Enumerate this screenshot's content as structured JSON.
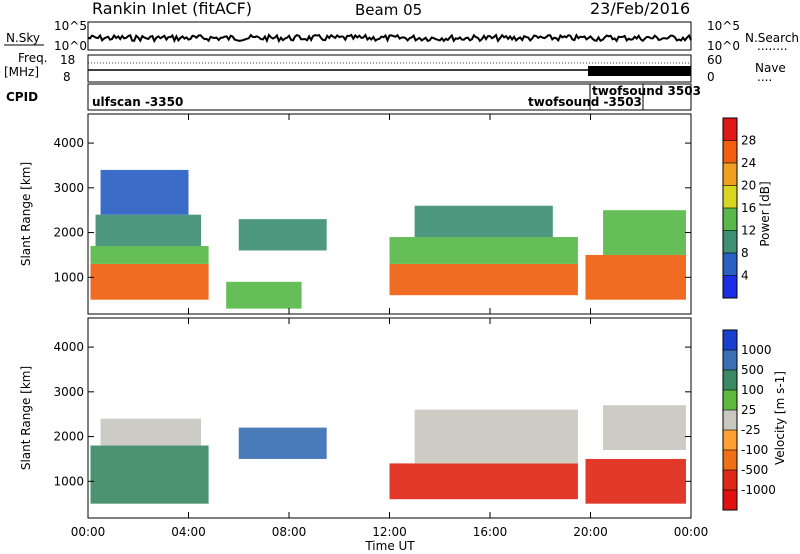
{
  "header": {
    "station": "Rankin Inlet (fitACF)",
    "beam": "Beam 05",
    "date": "23/Feb/2016"
  },
  "noise_panel": {
    "left_label": "N.Sky",
    "right_label": "N.Search",
    "right_dots": "........",
    "tick_top": "10^5",
    "tick_bottom": "10^0",
    "scale": "log"
  },
  "freq_panel": {
    "left_label_1": "Freq.",
    "left_label_2": "[MHz]",
    "ticks_left": [
      "18",
      "8"
    ],
    "right_label": "Nave",
    "right_dots": "....",
    "ticks_right": [
      "60",
      "0"
    ]
  },
  "cpid": {
    "label": "CPID",
    "segments": [
      {
        "name": "ulfscan -3350",
        "start_h": 0.0
      },
      {
        "name": "twofsound -3503",
        "start_h": 19.8
      },
      {
        "name": "twofsound 3503",
        "start_h": 20.0
      }
    ]
  },
  "power_panel": {
    "ylabel": "Slant Range [km]",
    "yticks": [
      "1000",
      "2000",
      "3000",
      "4000"
    ],
    "ylim": [
      180,
      4650
    ],
    "cbar_label": "Power [dB]",
    "cbar_ticks": [
      "4",
      "8",
      "12",
      "16",
      "20",
      "24",
      "28"
    ],
    "cbar_colors": [
      "#1a2ee8",
      "#2a5fc4",
      "#3f8f74",
      "#58b84a",
      "#d8d61e",
      "#f0a020",
      "#f06010",
      "#e01818"
    ]
  },
  "velocity_panel": {
    "ylabel": "Slant Range [km]",
    "yticks": [
      "1000",
      "2000",
      "3000",
      "4000"
    ],
    "ylim": [
      180,
      4650
    ],
    "cbar_label": "Velocity [m s-1]",
    "cbar_ticks": [
      "1000",
      "500",
      "100",
      "25",
      "-25",
      "-100",
      "-500",
      "-1000"
    ],
    "cbar_colors": [
      "#1a3fcf",
      "#3a6fb4",
      "#3c8a64",
      "#5fba40",
      "#c8c8c0",
      "#ffa030",
      "#f07018",
      "#e02818",
      "#e01010"
    ]
  },
  "xaxis": {
    "label": "Time UT",
    "ticks": [
      "00:00",
      "04:00",
      "08:00",
      "12:00",
      "16:00",
      "20:00",
      "00:00"
    ],
    "xlim_hours": [
      0,
      24
    ]
  },
  "chart_data": {
    "type": "heatmap",
    "title": "Rankin Inlet (fitACF)",
    "xlabel": "Time UT",
    "ylabel": "Slant Range [km]",
    "xlim_hours": [
      0,
      24
    ],
    "ylim_km": [
      180,
      4650
    ],
    "power_regions": [
      {
        "t0": 0.1,
        "t1": 4.8,
        "r0": 500,
        "r1": 1300,
        "value_db": 26
      },
      {
        "t0": 0.1,
        "t1": 4.8,
        "r0": 1300,
        "r1": 1700,
        "value_db": 14
      },
      {
        "t0": 0.3,
        "t1": 4.5,
        "r0": 1700,
        "r1": 2400,
        "value_db": 10
      },
      {
        "t0": 0.5,
        "t1": 4.0,
        "r0": 2400,
        "r1": 3400,
        "value_db": 6
      },
      {
        "t0": 5.5,
        "t1": 8.5,
        "r0": 300,
        "r1": 900,
        "value_db": 12
      },
      {
        "t0": 6.0,
        "t1": 9.5,
        "r0": 1600,
        "r1": 2300,
        "value_db": 10
      },
      {
        "t0": 12.0,
        "t1": 19.5,
        "r0": 600,
        "r1": 1300,
        "value_db": 25
      },
      {
        "t0": 12.0,
        "t1": 19.5,
        "r0": 1300,
        "r1": 1900,
        "value_db": 14
      },
      {
        "t0": 13.0,
        "t1": 18.5,
        "r0": 1900,
        "r1": 2600,
        "value_db": 8
      },
      {
        "t0": 19.8,
        "t1": 23.8,
        "r0": 500,
        "r1": 1500,
        "value_db": 24
      },
      {
        "t0": 20.5,
        "t1": 23.8,
        "r0": 1500,
        "r1": 2500,
        "value_db": 14
      }
    ],
    "velocity_regions": [
      {
        "t0": 0.1,
        "t1": 4.8,
        "r0": 500,
        "r1": 1800,
        "value_ms": 300
      },
      {
        "t0": 0.5,
        "t1": 4.5,
        "r0": 1800,
        "r1": 2400,
        "value_ms": 0
      },
      {
        "t0": 6.0,
        "t1": 9.5,
        "r0": 1500,
        "r1": 2200,
        "value_ms": 600
      },
      {
        "t0": 12.0,
        "t1": 19.5,
        "r0": 600,
        "r1": 1400,
        "value_ms": -400
      },
      {
        "t0": 13.0,
        "t1": 19.5,
        "r0": 1400,
        "r1": 2600,
        "value_ms": 0
      },
      {
        "t0": 19.8,
        "t1": 23.8,
        "r0": 500,
        "r1": 1500,
        "value_ms": -300
      },
      {
        "t0": 20.5,
        "t1": 23.8,
        "r0": 1700,
        "r1": 2700,
        "value_ms": 0
      }
    ]
  }
}
